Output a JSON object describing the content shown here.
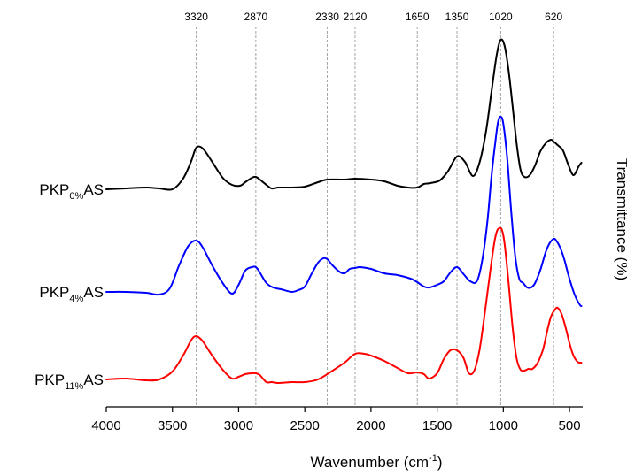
{
  "chart_data": {
    "type": "line",
    "xlabel_main": "Wavenumber (cm",
    "xlabel_sup": "-1",
    "xlabel_close": ")",
    "ylabel": "Transmittance (%)",
    "xlim": [
      4000,
      400
    ],
    "x_ticks": [
      4000,
      3500,
      3000,
      2500,
      2000,
      1500,
      1000,
      500
    ],
    "x_tick_labels": [
      "4000",
      "3500",
      "3000",
      "2500",
      "2000",
      "1500",
      "1000",
      "500"
    ],
    "peak_markers": [
      3320,
      2870,
      2330,
      2120,
      1650,
      1350,
      1020,
      620
    ],
    "peak_labels": [
      "3320",
      "2870",
      "2330",
      "2120",
      "1650",
      "1350",
      "1020",
      "620"
    ],
    "series": [
      {
        "label_base": "PKP",
        "label_sub": "0%",
        "label_tail": "AS",
        "color": "#000000",
        "x": [
          4000,
          3850,
          3700,
          3600,
          3500,
          3420,
          3360,
          3320,
          3270,
          3200,
          3120,
          3050,
          2990,
          2950,
          2900,
          2870,
          2840,
          2790,
          2750,
          2700,
          2600,
          2500,
          2400,
          2330,
          2200,
          2120,
          2000,
          1900,
          1800,
          1720,
          1650,
          1600,
          1550,
          1480,
          1420,
          1350,
          1290,
          1230,
          1180,
          1130,
          1090,
          1050,
          1020,
          990,
          960,
          930,
          900,
          870,
          840,
          800,
          760,
          720,
          680,
          640,
          620,
          590,
          550,
          510,
          470,
          430,
          410
        ],
        "y": [
          214,
          213,
          212,
          213,
          214,
          202,
          183,
          167,
          168,
          183,
          201,
          209,
          210,
          206,
          201,
          200,
          203,
          209,
          213,
          212,
          212,
          211,
          206,
          203,
          203,
          202,
          203,
          205,
          210,
          212,
          212,
          208,
          207,
          204,
          194,
          177,
          183,
          199,
          184,
          148,
          104,
          62,
          45,
          52,
          80,
          120,
          162,
          192,
          200,
          198,
          187,
          171,
          162,
          158,
          160,
          164,
          170,
          186,
          198,
          188,
          184
        ]
      },
      {
        "label_base": "PKP",
        "label_sub": "4%",
        "label_tail": "AS",
        "color": "#0000ff",
        "x": [
          4000,
          3850,
          3700,
          3600,
          3520,
          3450,
          3380,
          3320,
          3270,
          3200,
          3120,
          3050,
          3000,
          2950,
          2900,
          2870,
          2840,
          2790,
          2740,
          2680,
          2600,
          2550,
          2500,
          2450,
          2400,
          2360,
          2330,
          2290,
          2240,
          2200,
          2160,
          2120,
          2080,
          2000,
          1900,
          1800,
          1700,
          1650,
          1600,
          1560,
          1500,
          1450,
          1400,
          1350,
          1300,
          1250,
          1200,
          1160,
          1120,
          1090,
          1060,
          1040,
          1020,
          1000,
          970,
          940,
          910,
          880,
          850,
          820,
          790,
          760,
          720,
          680,
          650,
          620,
          600,
          570,
          540,
          510,
          480,
          450,
          420,
          410
        ],
        "y": [
          330,
          330,
          331,
          333,
          326,
          300,
          278,
          272,
          280,
          300,
          320,
          332,
          322,
          306,
          302,
          302,
          308,
          320,
          325,
          327,
          330,
          328,
          324,
          310,
          297,
          292,
          293,
          300,
          307,
          309,
          304,
          303,
          302,
          304,
          309,
          311,
          315,
          319,
          324,
          325,
          322,
          318,
          308,
          302,
          310,
          318,
          318,
          295,
          250,
          200,
          160,
          138,
          132,
          140,
          180,
          240,
          290,
          315,
          320,
          325,
          325,
          320,
          305,
          285,
          275,
          270,
          272,
          280,
          293,
          310,
          325,
          337,
          345,
          346
        ]
      },
      {
        "label_base": "PKP",
        "label_sub": "11%",
        "label_tail": "AS",
        "color": "#ff0000",
        "x": [
          4000,
          3850,
          3700,
          3600,
          3500,
          3420,
          3360,
          3320,
          3270,
          3200,
          3120,
          3050,
          3000,
          2950,
          2900,
          2870,
          2840,
          2790,
          2750,
          2700,
          2600,
          2500,
          2400,
          2300,
          2200,
          2120,
          2050,
          2000,
          1900,
          1800,
          1720,
          1650,
          1600,
          1560,
          1500,
          1450,
          1400,
          1350,
          1300,
          1260,
          1220,
          1180,
          1140,
          1100,
          1070,
          1050,
          1030,
          1010,
          990,
          960,
          930,
          900,
          870,
          840,
          810,
          780,
          740,
          700,
          670,
          640,
          610,
          590,
          560,
          530,
          500,
          470,
          440,
          420,
          410
        ],
        "y": [
          429,
          428,
          430,
          429,
          420,
          402,
          385,
          380,
          386,
          402,
          418,
          428,
          426,
          423,
          422,
          422,
          424,
          432,
          432,
          433,
          432,
          432,
          429,
          420,
          410,
          400,
          400,
          402,
          408,
          416,
          422,
          421,
          423,
          428,
          422,
          406,
          396,
          396,
          405,
          422,
          419,
          396,
          354,
          308,
          276,
          262,
          258,
          260,
          276,
          320,
          370,
          405,
          418,
          419,
          417,
          417,
          410,
          395,
          375,
          358,
          350,
          348,
          355,
          370,
          388,
          402,
          409,
          410,
          410
        ]
      }
    ]
  }
}
